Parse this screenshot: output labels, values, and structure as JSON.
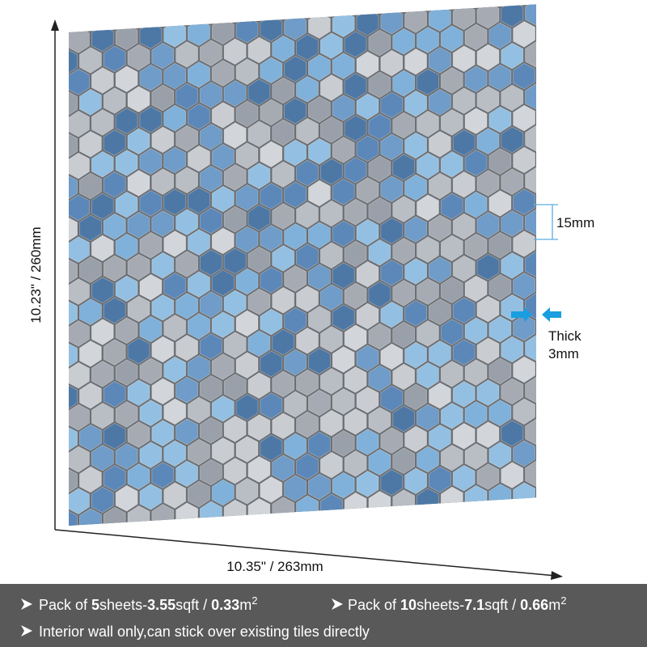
{
  "dimensions": {
    "height": "10.23\" / 260mm",
    "width": "10.35\" / 263mm",
    "tile_size": "15mm",
    "thickness": [
      "Thick",
      "3mm"
    ]
  },
  "banner": {
    "packs": [
      {
        "parts": [
          "Pack of ",
          "5",
          "sheets-",
          "3.55",
          "sqft / ",
          "0.33",
          "m",
          "2"
        ]
      },
      {
        "parts": [
          "Pack of ",
          "10",
          "sheets-",
          "7.1",
          "sqft / ",
          "0.66",
          "m",
          "2"
        ]
      }
    ],
    "note": "Interior wall only,can stick over existing tiles directly"
  }
}
